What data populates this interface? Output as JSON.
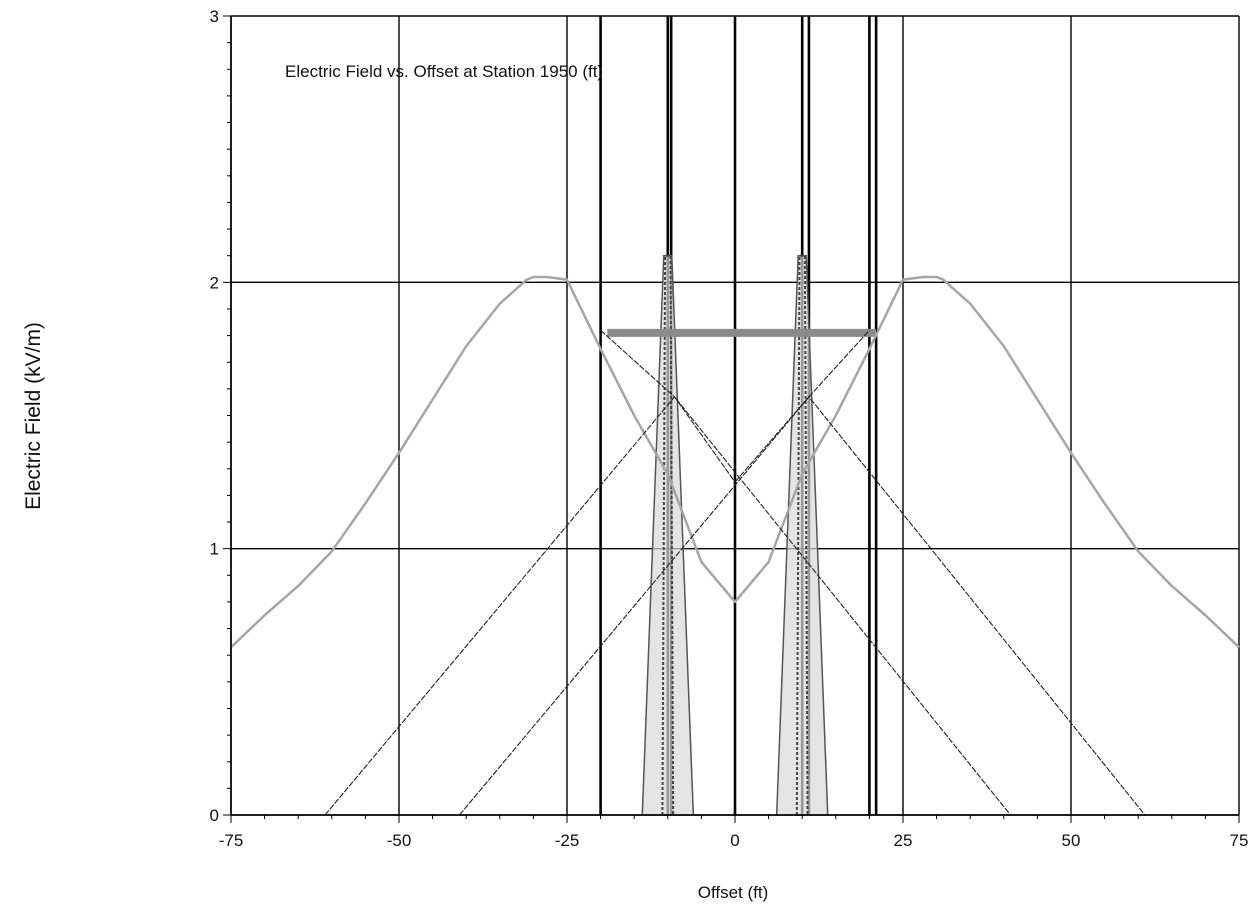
{
  "chart_data": {
    "type": "line",
    "title": "Electric Field vs. Offset at Station 1950 (ft)",
    "xlabel": "Offset (ft)",
    "ylabel": "Electric Field (kV/m)",
    "xlim": [
      -75,
      75
    ],
    "ylim": [
      0,
      3
    ],
    "x_ticks": [
      -75,
      -50,
      -25,
      0,
      25,
      50,
      75
    ],
    "y_ticks": [
      0,
      1,
      2,
      3
    ],
    "grid": true,
    "legend": "none",
    "colors": {
      "total_field": "#a6a6a6",
      "component_fields": "#222222",
      "grid": "#000000",
      "structure": "#555555",
      "crossarm": "#8a8a8a"
    },
    "series": [
      {
        "x": [
          -75,
          -70,
          -65,
          -60,
          -55,
          -50,
          -45,
          -40,
          -35,
          -31,
          -30,
          -28,
          -25,
          -20,
          -15,
          -10,
          -5,
          0,
          5,
          10,
          15,
          20,
          25,
          28,
          30,
          31,
          35,
          40,
          45,
          50,
          55,
          60,
          65,
          70,
          75
        ],
        "values": [
          0.63,
          0.75,
          0.86,
          0.99,
          1.17,
          1.36,
          1.56,
          1.76,
          1.92,
          2.01,
          2.02,
          2.02,
          2.01,
          1.75,
          1.5,
          1.28,
          0.95,
          0.8,
          0.95,
          1.28,
          1.5,
          1.75,
          2.01,
          2.02,
          2.02,
          2.01,
          1.92,
          1.76,
          1.56,
          1.36,
          1.17,
          0.99,
          0.86,
          0.75,
          0.63
        ]
      },
      {
        "x": [
          -61,
          -9,
          41
        ],
        "values": [
          0,
          1.57,
          0
        ]
      },
      {
        "x": [
          -41,
          11,
          61
        ],
        "values": [
          0,
          1.57,
          0
        ]
      },
      {
        "x": [
          -20,
          -9,
          0
        ],
        "values": [
          1.82,
          1.57,
          1.25
        ]
      },
      {
        "x": [
          0,
          11,
          20
        ],
        "values": [
          1.25,
          1.57,
          1.82
        ]
      }
    ],
    "structures": {
      "towers": [
        {
          "center": -10,
          "base_half_width": 3.8,
          "top_half_width": 0.6,
          "top": 2.1
        },
        {
          "center": 10,
          "base_half_width": 3.8,
          "top_half_width": 0.6,
          "top": 2.1
        }
      ],
      "crossarm": {
        "x_start": -19,
        "x_end": 21,
        "y": 1.81
      },
      "vertical_markers": [
        -20,
        -10,
        -9.5,
        0,
        10,
        11,
        20,
        21
      ]
    }
  }
}
